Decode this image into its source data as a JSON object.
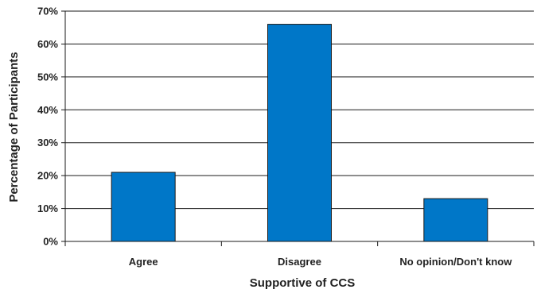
{
  "chart_data": {
    "type": "bar",
    "title": "",
    "xlabel": "Supportive of CCS",
    "ylabel": "Percentage of Participants",
    "categories": [
      "Agree",
      "Disagree",
      "No opinion/Don't know"
    ],
    "values": [
      21,
      66,
      13
    ],
    "unit": "%",
    "ylim": [
      0,
      70
    ],
    "yticks": [
      0,
      10,
      20,
      30,
      40,
      50,
      60,
      70
    ],
    "ytick_labels": [
      "0%",
      "10%",
      "20%",
      "30%",
      "40%",
      "50%",
      "60%",
      "70%"
    ],
    "grid": true,
    "bar_color": "#0077C8",
    "bar_edge_color": "#1a1a1a"
  }
}
